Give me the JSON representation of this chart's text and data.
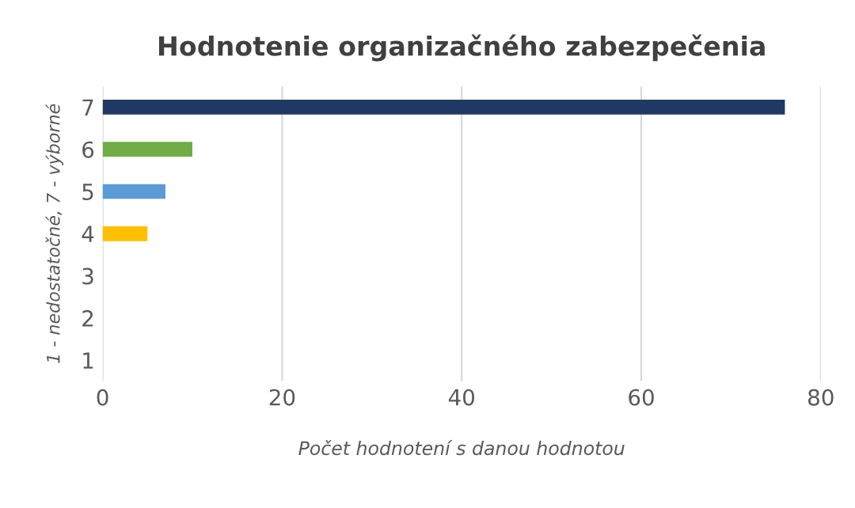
{
  "chart_data": {
    "type": "bar",
    "orientation": "horizontal",
    "title": "Hodnotenie organizačného zabezpečenia",
    "xlabel": "Počet hodnotení s danou hodnotou",
    "ylabel": "1 - nedostatočné, 7 - výborné",
    "categories": [
      "7",
      "6",
      "5",
      "4",
      "3",
      "2",
      "1"
    ],
    "values": [
      76,
      10,
      7,
      5,
      0,
      0,
      0
    ],
    "colors": [
      "#203864",
      "#70ad47",
      "#5b9bd5",
      "#ffc000",
      "#a5a5a5",
      "#ed7d31",
      "#4472c4"
    ],
    "xlim": [
      0,
      80
    ],
    "xticks": [
      0,
      20,
      40,
      60,
      80
    ],
    "grid": "x",
    "legend": false
  }
}
